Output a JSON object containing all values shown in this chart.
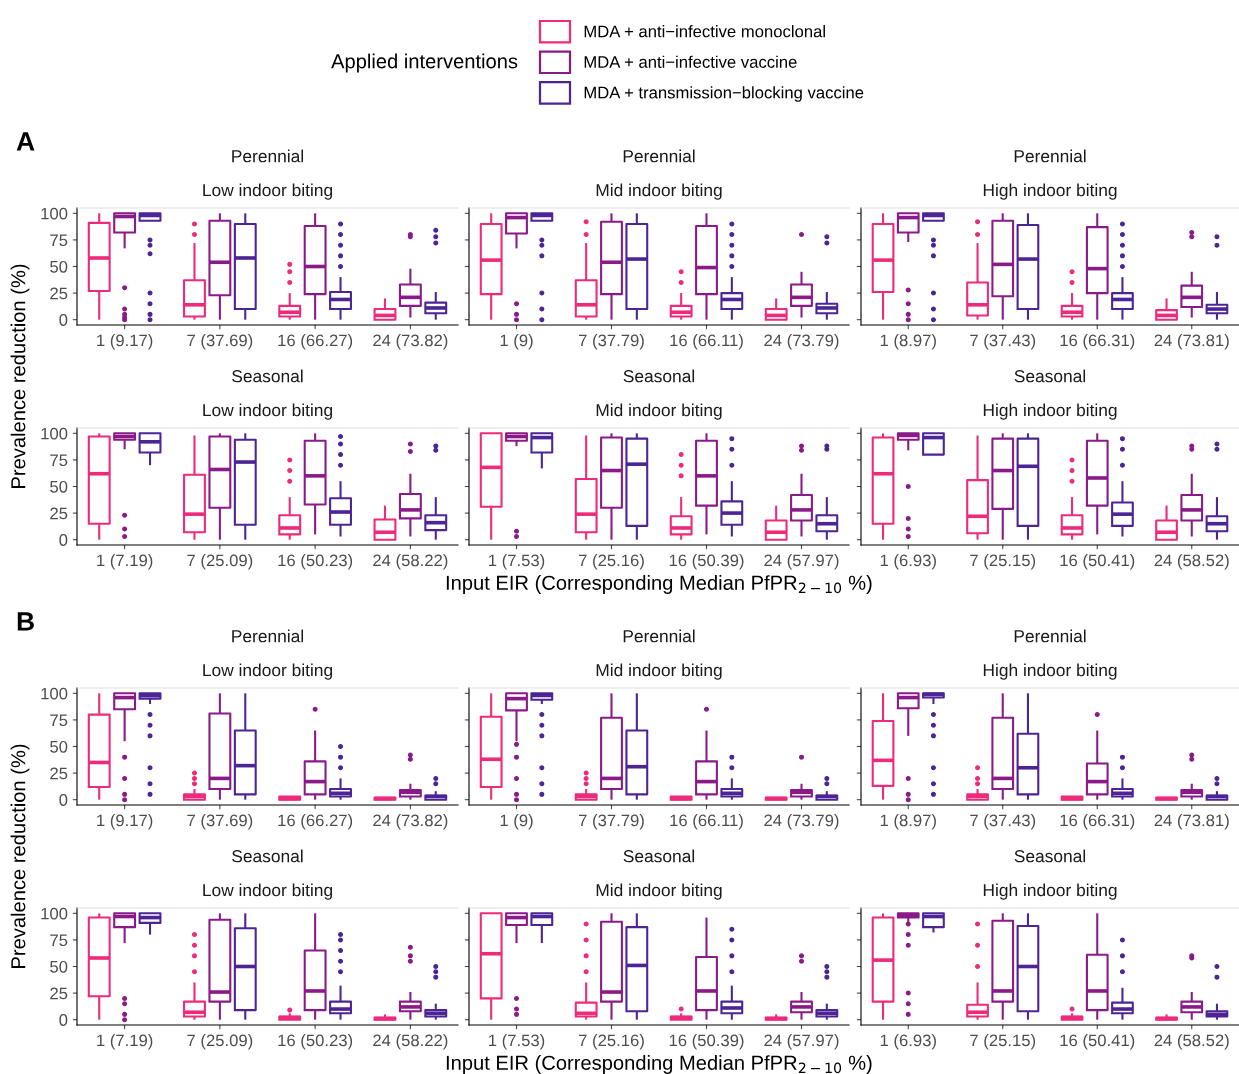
{
  "chart_data": [
    {
      "type": "box",
      "title": "Perennial",
      "subtitle": "Low indoor biting",
      "ylabel": "Prevalence reduction (%)",
      "annotations": [
        "A"
      ],
      "legend": "top",
      "legend_title": "Applied interventions",
      "grid": false,
      "marker": "circle",
      "ylim": [
        -5,
        105
      ],
      "yticks": [
        0,
        25,
        50,
        75,
        100
      ],
      "categories": [
        "1 (9.17)",
        "7 (37.69)",
        "16 (66.27)",
        "24 (73.82)"
      ],
      "series": [
        {
          "name": "MDA + anti−infective monoclonal",
          "color": "#ee2a7b",
          "boxes": [
            {
              "low": 0,
              "q1": 27,
              "median": 58,
              "q3": 91,
              "high": 100
            },
            {
              "low": 0,
              "q1": 3,
              "median": 14,
              "q3": 37,
              "high": 72,
              "outliers": [
                80,
                90
              ]
            },
            {
              "low": 0,
              "q1": 3,
              "median": 7,
              "q3": 13,
              "high": 25,
              "outliers": [
                35,
                45,
                52
              ]
            },
            {
              "low": 0,
              "q1": 0,
              "median": 4,
              "q3": 10,
              "high": 20
            }
          ]
        },
        {
          "name": "MDA + anti−infective vaccine",
          "color": "#8b1a89",
          "boxes": [
            {
              "low": 67,
              "q1": 82,
              "median": 97,
              "q3": 100,
              "high": 100,
              "outliers": [
                0,
                2,
                5,
                10,
                30
              ]
            },
            {
              "low": 0,
              "q1": 23,
              "median": 54,
              "q3": 93,
              "high": 100
            },
            {
              "low": 0,
              "q1": 24,
              "median": 50,
              "q3": 88,
              "high": 100
            },
            {
              "low": 2,
              "q1": 13,
              "median": 21,
              "q3": 33,
              "high": 48,
              "outliers": [
                78,
                80
              ]
            }
          ]
        },
        {
          "name": "MDA + transmission−blocking vaccine",
          "color": "#4d2495",
          "boxes": [
            {
              "low": 93,
              "q1": 93,
              "median": 98,
              "q3": 100,
              "high": 100,
              "outliers": [
                0,
                5,
                15,
                25,
                62,
                70,
                75
              ]
            },
            {
              "low": 0,
              "q1": 10,
              "median": 58,
              "q3": 90,
              "high": 100
            },
            {
              "low": 0,
              "q1": 10,
              "median": 19,
              "q3": 26,
              "high": 40,
              "outliers": [
                50,
                60,
                70,
                80,
                90
              ]
            },
            {
              "low": 0,
              "q1": 6,
              "median": 11,
              "q3": 16,
              "high": 26,
              "outliers": [
                72,
                78,
                84
              ]
            }
          ]
        }
      ]
    },
    {
      "type": "box",
      "title": "Perennial",
      "subtitle": "Mid indoor biting",
      "tick_labels": "x",
      "grid": false,
      "marker": "circle",
      "ylim": [
        -5,
        105
      ],
      "yticks": [
        0,
        25,
        50,
        75,
        100
      ],
      "categories": [
        "1 (9)",
        "7 (37.79)",
        "16 (66.11)",
        "24 (73.79)"
      ],
      "series": [
        {
          "color": "#ee2a7b",
          "boxes": [
            {
              "low": 0,
              "q1": 24,
              "median": 56,
              "q3": 90,
              "high": 100
            },
            {
              "low": 0,
              "q1": 3,
              "median": 14,
              "q3": 37,
              "high": 72,
              "outliers": [
                80,
                92
              ]
            },
            {
              "low": 0,
              "q1": 3,
              "median": 7,
              "q3": 13,
              "high": 25,
              "outliers": [
                35,
                45
              ]
            },
            {
              "low": 0,
              "q1": 0,
              "median": 4,
              "q3": 10,
              "high": 20
            }
          ]
        },
        {
          "color": "#8b1a89",
          "boxes": [
            {
              "low": 67,
              "q1": 81,
              "median": 96,
              "q3": 100,
              "high": 100,
              "outliers": [
                0,
                5,
                15
              ]
            },
            {
              "low": 0,
              "q1": 24,
              "median": 54,
              "q3": 92,
              "high": 100
            },
            {
              "low": 0,
              "q1": 24,
              "median": 49,
              "q3": 88,
              "high": 100
            },
            {
              "low": 2,
              "q1": 13,
              "median": 21,
              "q3": 33,
              "high": 45,
              "outliers": [
                80
              ]
            }
          ]
        },
        {
          "color": "#4d2495",
          "boxes": [
            {
              "low": 93,
              "q1": 93,
              "median": 98,
              "q3": 100,
              "high": 100,
              "outliers": [
                0,
                10,
                25,
                60,
                70,
                75
              ]
            },
            {
              "low": 0,
              "q1": 10,
              "median": 57,
              "q3": 90,
              "high": 100
            },
            {
              "low": 0,
              "q1": 10,
              "median": 19,
              "q3": 25,
              "high": 40,
              "outliers": [
                50,
                60,
                70,
                80,
                90
              ]
            },
            {
              "low": 0,
              "q1": 6,
              "median": 11,
              "q3": 15,
              "high": 26,
              "outliers": [
                72,
                78
              ]
            }
          ]
        }
      ]
    },
    {
      "type": "box",
      "title": "Perennial",
      "subtitle": "High indoor biting",
      "tick_labels": "x",
      "grid": false,
      "marker": "circle",
      "ylim": [
        -5,
        105
      ],
      "yticks": [
        0,
        25,
        50,
        75,
        100
      ],
      "categories": [
        "1 (8.97)",
        "7 (37.43)",
        "16 (66.31)",
        "24 (73.81)"
      ],
      "series": [
        {
          "color": "#ee2a7b",
          "boxes": [
            {
              "low": 0,
              "q1": 26,
              "median": 56,
              "q3": 90,
              "high": 100
            },
            {
              "low": 0,
              "q1": 4,
              "median": 14,
              "q3": 35,
              "high": 72,
              "outliers": [
                80,
                92
              ]
            },
            {
              "low": 0,
              "q1": 3,
              "median": 7,
              "q3": 13,
              "high": 25,
              "outliers": [
                35,
                45
              ]
            },
            {
              "low": 0,
              "q1": 0,
              "median": 4,
              "q3": 9,
              "high": 20
            }
          ]
        },
        {
          "color": "#8b1a89",
          "boxes": [
            {
              "low": 73,
              "q1": 82,
              "median": 96,
              "q3": 100,
              "high": 100,
              "outliers": [
                0,
                5,
                15,
                28
              ]
            },
            {
              "low": 0,
              "q1": 22,
              "median": 52,
              "q3": 93,
              "high": 100
            },
            {
              "low": 0,
              "q1": 25,
              "median": 48,
              "q3": 87,
              "high": 100
            },
            {
              "low": 2,
              "q1": 12,
              "median": 21,
              "q3": 32,
              "high": 45,
              "outliers": [
                78,
                82
              ]
            }
          ]
        },
        {
          "color": "#4d2495",
          "boxes": [
            {
              "low": 93,
              "q1": 93,
              "median": 98,
              "q3": 100,
              "high": 100,
              "outliers": [
                0,
                10,
                25,
                60,
                70,
                75
              ]
            },
            {
              "low": 0,
              "q1": 10,
              "median": 57,
              "q3": 89,
              "high": 100
            },
            {
              "low": 0,
              "q1": 10,
              "median": 19,
              "q3": 25,
              "high": 40,
              "outliers": [
                50,
                60,
                70,
                80,
                90
              ]
            },
            {
              "low": 0,
              "q1": 6,
              "median": 10,
              "q3": 14,
              "high": 26,
              "outliers": [
                70,
                78
              ]
            }
          ]
        }
      ]
    },
    {
      "type": "box",
      "title": "Seasonal",
      "subtitle": "Low indoor biting",
      "grid": false,
      "marker": "circle",
      "ylim": [
        -5,
        105
      ],
      "yticks": [
        0,
        25,
        50,
        75,
        100
      ],
      "categories": [
        "1 (7.19)",
        "7 (25.09)",
        "16 (50.23)",
        "24 (58.22)"
      ],
      "series": [
        {
          "color": "#ee2a7b",
          "boxes": [
            {
              "low": 0,
              "q1": 15,
              "median": 62,
              "q3": 97,
              "high": 100
            },
            {
              "low": 0,
              "q1": 7,
              "median": 24,
              "q3": 61,
              "high": 98
            },
            {
              "low": 0,
              "q1": 5,
              "median": 11,
              "q3": 23,
              "high": 40,
              "outliers": [
                55,
                65,
                75
              ]
            },
            {
              "low": 0,
              "q1": 0,
              "median": 7,
              "q3": 19,
              "high": 32
            }
          ]
        },
        {
          "color": "#8b1a89",
          "boxes": [
            {
              "low": 85,
              "q1": 94,
              "median": 97,
              "q3": 100,
              "high": 100,
              "outliers": [
                3,
                10,
                23
              ]
            },
            {
              "low": 0,
              "q1": 30,
              "median": 66,
              "q3": 97,
              "high": 100
            },
            {
              "low": 5,
              "q1": 33,
              "median": 60,
              "q3": 93,
              "high": 100
            },
            {
              "low": 3,
              "q1": 20,
              "median": 28,
              "q3": 43,
              "high": 62,
              "outliers": [
                83,
                90
              ]
            }
          ]
        },
        {
          "color": "#4d2495",
          "boxes": [
            {
              "low": 70,
              "q1": 82,
              "median": 92,
              "q3": 100,
              "high": 100
            },
            {
              "low": 0,
              "q1": 14,
              "median": 73,
              "q3": 94,
              "high": 100
            },
            {
              "low": 3,
              "q1": 14,
              "median": 26,
              "q3": 39,
              "high": 55,
              "outliers": [
                70,
                80,
                90,
                97
              ]
            },
            {
              "low": 0,
              "q1": 9,
              "median": 16,
              "q3": 23,
              "high": 40,
              "outliers": [
                84,
                88
              ]
            }
          ]
        }
      ]
    },
    {
      "type": "box",
      "title": "Seasonal",
      "subtitle": "Mid indoor biting",
      "xlabel": "Input EIR (Corresponding Median PfPR$_{2−10}$ %)",
      "tick_labels": "x",
      "grid": false,
      "marker": "circle",
      "ylim": [
        -5,
        105
      ],
      "yticks": [
        0,
        25,
        50,
        75,
        100
      ],
      "categories": [
        "1 (7.53)",
        "7 (25.16)",
        "16 (50.39)",
        "24 (57.97)"
      ],
      "series": [
        {
          "color": "#ee2a7b",
          "boxes": [
            {
              "low": 0,
              "q1": 31,
              "median": 68,
              "q3": 100,
              "high": 100
            },
            {
              "low": 0,
              "q1": 7,
              "median": 24,
              "q3": 57,
              "high": 98
            },
            {
              "low": 0,
              "q1": 5,
              "median": 11,
              "q3": 22,
              "high": 40,
              "outliers": [
                60,
                70,
                80
              ]
            },
            {
              "low": 0,
              "q1": 0,
              "median": 7,
              "q3": 18,
              "high": 32
            }
          ]
        },
        {
          "color": "#8b1a89",
          "boxes": [
            {
              "low": 88,
              "q1": 93,
              "median": 97,
              "q3": 100,
              "high": 100,
              "outliers": [
                3,
                8
              ]
            },
            {
              "low": 0,
              "q1": 30,
              "median": 65,
              "q3": 96,
              "high": 100
            },
            {
              "low": 5,
              "q1": 32,
              "median": 60,
              "q3": 93,
              "high": 100
            },
            {
              "low": 3,
              "q1": 18,
              "median": 28,
              "q3": 42,
              "high": 62,
              "outliers": [
                84,
                88
              ]
            }
          ]
        },
        {
          "color": "#4d2495",
          "boxes": [
            {
              "low": 67,
              "q1": 82,
              "median": 96,
              "q3": 100,
              "high": 100
            },
            {
              "low": 0,
              "q1": 13,
              "median": 71,
              "q3": 95,
              "high": 100
            },
            {
              "low": 3,
              "q1": 14,
              "median": 25,
              "q3": 36,
              "high": 55,
              "outliers": [
                70,
                85,
                95
              ]
            },
            {
              "low": 0,
              "q1": 8,
              "median": 15,
              "q3": 23,
              "high": 40,
              "outliers": [
                85,
                88
              ]
            }
          ]
        }
      ]
    },
    {
      "type": "box",
      "title": "Seasonal",
      "subtitle": "High indoor biting",
      "tick_labels": "x",
      "grid": false,
      "marker": "circle",
      "ylim": [
        -5,
        105
      ],
      "yticks": [
        0,
        25,
        50,
        75,
        100
      ],
      "categories": [
        "1 (6.93)",
        "7 (25.15)",
        "16 (50.41)",
        "24 (58.52)"
      ],
      "series": [
        {
          "color": "#ee2a7b",
          "boxes": [
            {
              "low": 0,
              "q1": 15,
              "median": 62,
              "q3": 96,
              "high": 100
            },
            {
              "low": 0,
              "q1": 6,
              "median": 22,
              "q3": 56,
              "high": 98
            },
            {
              "low": 0,
              "q1": 5,
              "median": 11,
              "q3": 23,
              "high": 40,
              "outliers": [
                55,
                65,
                75
              ]
            },
            {
              "low": 0,
              "q1": 0,
              "median": 7,
              "q3": 18,
              "high": 32
            }
          ]
        },
        {
          "color": "#8b1a89",
          "boxes": [
            {
              "low": 84,
              "q1": 94,
              "median": 98,
              "q3": 100,
              "high": 100,
              "outliers": [
                3,
                10,
                20,
                50
              ]
            },
            {
              "low": 0,
              "q1": 29,
              "median": 65,
              "q3": 95,
              "high": 100
            },
            {
              "low": 5,
              "q1": 32,
              "median": 58,
              "q3": 93,
              "high": 100
            },
            {
              "low": 3,
              "q1": 18,
              "median": 28,
              "q3": 42,
              "high": 62,
              "outliers": [
                85,
                88
              ]
            }
          ]
        },
        {
          "color": "#4d2495",
          "boxes": [
            {
              "low": 80,
              "q1": 80,
              "median": 96,
              "q3": 100,
              "high": 100
            },
            {
              "low": 0,
              "q1": 13,
              "median": 69,
              "q3": 95,
              "high": 100
            },
            {
              "low": 3,
              "q1": 13,
              "median": 24,
              "q3": 35,
              "high": 55,
              "outliers": [
                70,
                85,
                95
              ]
            },
            {
              "low": 0,
              "q1": 8,
              "median": 15,
              "q3": 22,
              "high": 40,
              "outliers": [
                85,
                90
              ]
            }
          ]
        }
      ]
    },
    {
      "type": "box",
      "title": "Perennial",
      "subtitle": "Low indoor biting",
      "ylabel": "Prevalence reduction (%)",
      "annotations": [
        "B"
      ],
      "grid": false,
      "marker": "circle",
      "ylim": [
        -5,
        105
      ],
      "yticks": [
        0,
        25,
        50,
        75,
        100
      ],
      "categories": [
        "1 (9.17)",
        "7 (37.69)",
        "16 (66.27)",
        "24 (73.82)"
      ],
      "series": [
        {
          "color": "#ee2a7b",
          "boxes": [
            {
              "low": 0,
              "q1": 12,
              "median": 35,
              "q3": 80,
              "high": 100
            },
            {
              "low": 0,
              "q1": 0,
              "median": 3,
              "q3": 5,
              "high": 10,
              "outliers": [
                15,
                20,
                25
              ]
            },
            {
              "low": 0,
              "q1": 0,
              "median": 1,
              "q3": 3,
              "high": 3
            },
            {
              "low": 0,
              "q1": 0,
              "median": 1,
              "q3": 2,
              "high": 2
            }
          ]
        },
        {
          "color": "#8b1a89",
          "boxes": [
            {
              "low": 55,
              "q1": 85,
              "median": 96,
              "q3": 100,
              "high": 100,
              "outliers": [
                0,
                5,
                20,
                40
              ]
            },
            {
              "low": 0,
              "q1": 10,
              "median": 20,
              "q3": 81,
              "high": 100
            },
            {
              "low": 0,
              "q1": 5,
              "median": 17,
              "q3": 36,
              "high": 65,
              "outliers": [
                85
              ]
            },
            {
              "low": 0,
              "q1": 3,
              "median": 7,
              "q3": 9,
              "high": 15,
              "outliers": [
                38,
                42
              ]
            }
          ]
        },
        {
          "color": "#4d2495",
          "boxes": [
            {
              "low": 90,
              "q1": 95,
              "median": 98,
              "q3": 100,
              "high": 100,
              "outliers": [
                5,
                15,
                30,
                60,
                70,
                80
              ]
            },
            {
              "low": 0,
              "q1": 5,
              "median": 32,
              "q3": 65,
              "high": 100
            },
            {
              "low": 0,
              "q1": 3,
              "median": 6,
              "q3": 10,
              "high": 20,
              "outliers": [
                30,
                40,
                50
              ]
            },
            {
              "low": 0,
              "q1": 0,
              "median": 3,
              "q3": 4,
              "high": 8,
              "outliers": [
                15,
                20
              ]
            }
          ]
        }
      ]
    },
    {
      "type": "box",
      "title": "Perennial",
      "subtitle": "Mid indoor biting",
      "tick_labels": "x",
      "grid": false,
      "marker": "circle",
      "ylim": [
        -5,
        105
      ],
      "yticks": [
        0,
        25,
        50,
        75,
        100
      ],
      "categories": [
        "1 (9)",
        "7 (37.79)",
        "16 (66.11)",
        "24 (73.79)"
      ],
      "series": [
        {
          "color": "#ee2a7b",
          "boxes": [
            {
              "low": 0,
              "q1": 12,
              "median": 38,
              "q3": 78,
              "high": 100
            },
            {
              "low": 0,
              "q1": 0,
              "median": 3,
              "q3": 5,
              "high": 10,
              "outliers": [
                15,
                20,
                25
              ]
            },
            {
              "low": 0,
              "q1": 0,
              "median": 1,
              "q3": 3,
              "high": 3
            },
            {
              "low": 0,
              "q1": 0,
              "median": 1,
              "q3": 2,
              "high": 2
            }
          ]
        },
        {
          "color": "#8b1a89",
          "boxes": [
            {
              "low": 55,
              "q1": 84,
              "median": 95,
              "q3": 100,
              "high": 100,
              "outliers": [
                0,
                5,
                20,
                40,
                52
              ]
            },
            {
              "low": 0,
              "q1": 10,
              "median": 20,
              "q3": 77,
              "high": 100
            },
            {
              "low": 0,
              "q1": 5,
              "median": 17,
              "q3": 36,
              "high": 65,
              "outliers": [
                85
              ]
            },
            {
              "low": 0,
              "q1": 3,
              "median": 7,
              "q3": 9,
              "high": 15,
              "outliers": [
                40
              ]
            }
          ]
        },
        {
          "color": "#4d2495",
          "boxes": [
            {
              "low": 90,
              "q1": 94,
              "median": 98,
              "q3": 100,
              "high": 100,
              "outliers": [
                5,
                15,
                30,
                60,
                70,
                80
              ]
            },
            {
              "low": 0,
              "q1": 5,
              "median": 31,
              "q3": 65,
              "high": 100
            },
            {
              "low": 0,
              "q1": 3,
              "median": 6,
              "q3": 10,
              "high": 20,
              "outliers": [
                30,
                40
              ]
            },
            {
              "low": 0,
              "q1": 0,
              "median": 3,
              "q3": 4,
              "high": 8,
              "outliers": [
                15,
                20
              ]
            }
          ]
        }
      ]
    },
    {
      "type": "box",
      "title": "Perennial",
      "subtitle": "High indoor biting",
      "tick_labels": "x",
      "grid": false,
      "marker": "circle",
      "ylim": [
        -5,
        105
      ],
      "yticks": [
        0,
        25,
        50,
        75,
        100
      ],
      "categories": [
        "1 (8.97)",
        "7 (37.43)",
        "16 (66.31)",
        "24 (73.81)"
      ],
      "series": [
        {
          "color": "#ee2a7b",
          "boxes": [
            {
              "low": 0,
              "q1": 13,
              "median": 37,
              "q3": 74,
              "high": 100
            },
            {
              "low": 0,
              "q1": 0,
              "median": 3,
              "q3": 5,
              "high": 10,
              "outliers": [
                15,
                20,
                30
              ]
            },
            {
              "low": 0,
              "q1": 0,
              "median": 1,
              "q3": 3,
              "high": 3
            },
            {
              "low": 0,
              "q1": 0,
              "median": 1,
              "q3": 2,
              "high": 2
            }
          ]
        },
        {
          "color": "#8b1a89",
          "boxes": [
            {
              "low": 60,
              "q1": 86,
              "median": 96,
              "q3": 100,
              "high": 100,
              "outliers": [
                0,
                5,
                20
              ]
            },
            {
              "low": 0,
              "q1": 10,
              "median": 20,
              "q3": 77,
              "high": 100
            },
            {
              "low": 0,
              "q1": 5,
              "median": 17,
              "q3": 34,
              "high": 65,
              "outliers": [
                80
              ]
            },
            {
              "low": 0,
              "q1": 3,
              "median": 7,
              "q3": 9,
              "high": 15,
              "outliers": [
                38,
                42
              ]
            }
          ]
        },
        {
          "color": "#4d2495",
          "boxes": [
            {
              "low": 90,
              "q1": 96,
              "median": 99,
              "q3": 100,
              "high": 100,
              "outliers": [
                5,
                15,
                30,
                60,
                70,
                80
              ]
            },
            {
              "low": 0,
              "q1": 5,
              "median": 30,
              "q3": 62,
              "high": 100
            },
            {
              "low": 0,
              "q1": 3,
              "median": 6,
              "q3": 10,
              "high": 20,
              "outliers": [
                30,
                40
              ]
            },
            {
              "low": 0,
              "q1": 0,
              "median": 3,
              "q3": 4,
              "high": 8,
              "outliers": [
                15,
                20
              ]
            }
          ]
        }
      ]
    },
    {
      "type": "box",
      "title": "Seasonal",
      "subtitle": "Low indoor biting",
      "grid": false,
      "marker": "circle",
      "ylim": [
        -5,
        105
      ],
      "yticks": [
        0,
        25,
        50,
        75,
        100
      ],
      "categories": [
        "1 (7.19)",
        "7 (25.09)",
        "16 (50.23)",
        "24 (58.22)"
      ],
      "series": [
        {
          "color": "#ee2a7b",
          "boxes": [
            {
              "low": 0,
              "q1": 22,
              "median": 58,
              "q3": 96,
              "high": 100
            },
            {
              "low": 0,
              "q1": 3,
              "median": 7,
              "q3": 17,
              "high": 35,
              "outliers": [
                45,
                60,
                70,
                80
              ]
            },
            {
              "low": 0,
              "q1": 0,
              "median": 2,
              "q3": 3,
              "high": 6,
              "outliers": [
                9
              ]
            },
            {
              "low": 0,
              "q1": 0,
              "median": 1,
              "q3": 2,
              "high": 5
            }
          ]
        },
        {
          "color": "#8b1a89",
          "boxes": [
            {
              "low": 72,
              "q1": 87,
              "median": 97,
              "q3": 100,
              "high": 100,
              "outliers": [
                0,
                5,
                15,
                20
              ]
            },
            {
              "low": 0,
              "q1": 17,
              "median": 26,
              "q3": 94,
              "high": 100
            },
            {
              "low": 0,
              "q1": 9,
              "median": 27,
              "q3": 65,
              "high": 100
            },
            {
              "low": 0,
              "q1": 8,
              "median": 12,
              "q3": 17,
              "high": 26,
              "outliers": [
                55,
                60,
                68
              ]
            }
          ]
        },
        {
          "color": "#4d2495",
          "boxes": [
            {
              "low": 80,
              "q1": 91,
              "median": 96,
              "q3": 100,
              "high": 100
            },
            {
              "low": 0,
              "q1": 9,
              "median": 50,
              "q3": 86,
              "high": 100
            },
            {
              "low": 0,
              "q1": 6,
              "median": 10,
              "q3": 17,
              "high": 32,
              "outliers": [
                45,
                55,
                65,
                75,
                80
              ]
            },
            {
              "low": 0,
              "q1": 3,
              "median": 6,
              "q3": 9,
              "high": 15,
              "outliers": [
                40,
                45,
                50
              ]
            }
          ]
        }
      ]
    },
    {
      "type": "box",
      "title": "Seasonal",
      "subtitle": "Mid indoor biting",
      "xlabel": "Input EIR (Corresponding Median PfPR$_{2−10}$ %)",
      "tick_labels": "x",
      "grid": false,
      "marker": "circle",
      "ylim": [
        -5,
        105
      ],
      "yticks": [
        0,
        25,
        50,
        75,
        100
      ],
      "categories": [
        "1 (7.53)",
        "7 (25.16)",
        "16 (50.39)",
        "24 (57.97)"
      ],
      "series": [
        {
          "color": "#ee2a7b",
          "boxes": [
            {
              "low": 0,
              "q1": 20,
              "median": 62,
              "q3": 100,
              "high": 100
            },
            {
              "low": 0,
              "q1": 3,
              "median": 6,
              "q3": 16,
              "high": 35,
              "outliers": [
                45,
                60,
                75,
                90
              ]
            },
            {
              "low": 0,
              "q1": 0,
              "median": 2,
              "q3": 3,
              "high": 6,
              "outliers": [
                10
              ]
            },
            {
              "low": 0,
              "q1": 0,
              "median": 1,
              "q3": 2,
              "high": 5
            }
          ]
        },
        {
          "color": "#8b1a89",
          "boxes": [
            {
              "low": 72,
              "q1": 89,
              "median": 96,
              "q3": 100,
              "high": 100,
              "outliers": [
                5,
                10,
                20
              ]
            },
            {
              "low": 0,
              "q1": 17,
              "median": 26,
              "q3": 92,
              "high": 100
            },
            {
              "low": 0,
              "q1": 9,
              "median": 27,
              "q3": 59,
              "high": 96
            },
            {
              "low": 0,
              "q1": 7,
              "median": 12,
              "q3": 17,
              "high": 26,
              "outliers": [
                55,
                60
              ]
            }
          ]
        },
        {
          "color": "#4d2495",
          "boxes": [
            {
              "low": 72,
              "q1": 89,
              "median": 97,
              "q3": 100,
              "high": 100
            },
            {
              "low": 0,
              "q1": 8,
              "median": 51,
              "q3": 87,
              "high": 100
            },
            {
              "low": 0,
              "q1": 6,
              "median": 11,
              "q3": 17,
              "high": 32,
              "outliers": [
                45,
                60,
                75,
                85
              ]
            },
            {
              "low": 0,
              "q1": 3,
              "median": 6,
              "q3": 9,
              "high": 15,
              "outliers": [
                40,
                45,
                50
              ]
            }
          ]
        }
      ]
    },
    {
      "type": "box",
      "title": "Seasonal",
      "subtitle": "High indoor biting",
      "tick_labels": "x",
      "grid": false,
      "marker": "circle",
      "ylim": [
        -5,
        105
      ],
      "yticks": [
        0,
        25,
        50,
        75,
        100
      ],
      "categories": [
        "1 (6.93)",
        "7 (25.15)",
        "16 (50.41)",
        "24 (58.52)"
      ],
      "series": [
        {
          "color": "#ee2a7b",
          "boxes": [
            {
              "low": 0,
              "q1": 17,
              "median": 56,
              "q3": 96,
              "high": 100
            },
            {
              "low": 0,
              "q1": 3,
              "median": 7,
              "q3": 14,
              "high": 35,
              "outliers": [
                50,
                70,
                90
              ]
            },
            {
              "low": 0,
              "q1": 0,
              "median": 2,
              "q3": 3,
              "high": 6,
              "outliers": [
                10
              ]
            },
            {
              "low": 0,
              "q1": 0,
              "median": 1,
              "q3": 2,
              "high": 5
            }
          ]
        },
        {
          "color": "#8b1a89",
          "boxes": [
            {
              "low": 88,
              "q1": 96,
              "median": 98,
              "q3": 100,
              "high": 100,
              "outliers": [
                5,
                15,
                25,
                70,
                80,
                90
              ]
            },
            {
              "low": 0,
              "q1": 17,
              "median": 27,
              "q3": 93,
              "high": 100
            },
            {
              "low": 0,
              "q1": 9,
              "median": 27,
              "q3": 61,
              "high": 100
            },
            {
              "low": 0,
              "q1": 7,
              "median": 12,
              "q3": 17,
              "high": 26,
              "outliers": [
                58,
                60
              ]
            }
          ]
        },
        {
          "color": "#4d2495",
          "boxes": [
            {
              "low": 82,
              "q1": 87,
              "median": 97,
              "q3": 100,
              "high": 100
            },
            {
              "low": 0,
              "q1": 8,
              "median": 50,
              "q3": 88,
              "high": 100
            },
            {
              "low": 0,
              "q1": 6,
              "median": 10,
              "q3": 16,
              "high": 30,
              "outliers": [
                45,
                60,
                75
              ]
            },
            {
              "low": 0,
              "q1": 3,
              "median": 5,
              "q3": 8,
              "high": 15,
              "outliers": [
                40,
                50
              ]
            }
          ]
        }
      ]
    }
  ]
}
